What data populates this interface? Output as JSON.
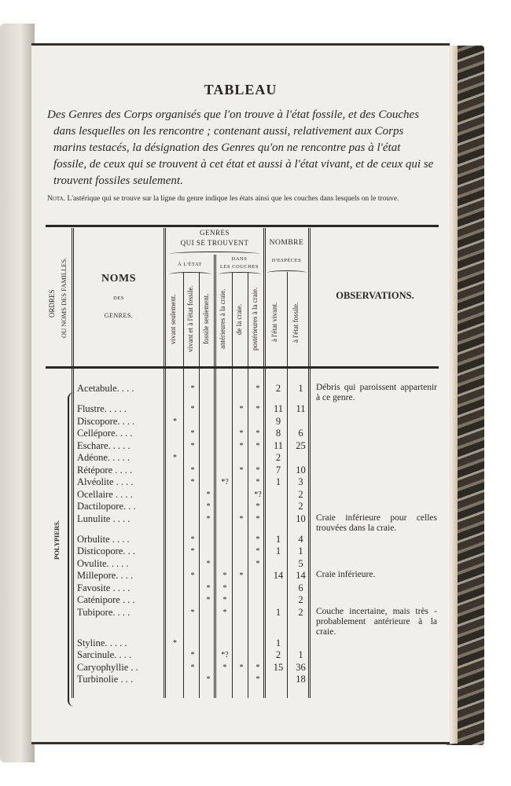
{
  "title": "TABLEAU",
  "subtitle": "Des Genres des Corps organisés que l'on trouve à l'état fossile, et des Couches dans lesquelles on les rencontre ; contenant aussi, relativement aux Corps marins testacés, la désignation des Genres qu'on ne rencontre pas à l'état fossile, de ceux qui se trouvent à cet état et aussi à l'état vivant, et de ceux qui se trouvent fossiles seulement.",
  "nota": {
    "label": "Nota.",
    "text": "L'astérique qui se trouve sur la ligne du genre indique les états ainsi que les couches dans lesquels on le trouve."
  },
  "header": {
    "ordres": "ORDRES",
    "ordres2": "OU NOMS DES FAMILLES.",
    "noms": "NOMS",
    "des": "DES",
    "genres": "GENRES.",
    "genres_title": "GENRES",
    "qui_se_trouvent": "QUI SE TROUVENT",
    "a_l_etat": "À L'ÉTAT",
    "dans": "DANS",
    "les_couches": "LES COUCHES",
    "nombre": "NOMBRE",
    "d_especes": "D'ESPÈCES",
    "cols": [
      "vivant seulement.",
      "vivant et à l'état fossile.",
      "fossile seulement.",
      "antérieures à la craie.",
      "de la craie.",
      "postérieures à la craie.",
      "à l'état vivant.",
      "à l'état fossile."
    ],
    "observations": "OBSERVATIONS."
  },
  "order_name": "POLYPIERS.",
  "rows": [
    {
      "name": "Acetabule. . . .",
      "marks": [
        "",
        "*",
        "",
        "",
        "",
        "*"
      ],
      "n1": "2",
      "n2": "1",
      "obs": "Débris qui paroissent appartenir à ce genre."
    },
    {
      "name": "Flustre. . . . .",
      "marks": [
        "",
        "*",
        "",
        "",
        "*",
        "*"
      ],
      "n1": "11",
      "n2": "11",
      "obs": ""
    },
    {
      "name": "Discopore. . . .",
      "marks": [
        "*",
        "",
        "",
        "",
        "",
        ""
      ],
      "n1": "9",
      "n2": "",
      "obs": ""
    },
    {
      "name": "Cellépore. . . .",
      "marks": [
        "",
        "*",
        "",
        "",
        "*",
        "*"
      ],
      "n1": "8",
      "n2": "6",
      "obs": ""
    },
    {
      "name": "Eschare. . . . .",
      "marks": [
        "",
        "*",
        "",
        "",
        "*",
        "*"
      ],
      "n1": "11",
      "n2": "25",
      "obs": ""
    },
    {
      "name": "Adéone. . . . .",
      "marks": [
        "*",
        "",
        "",
        "",
        "",
        ""
      ],
      "n1": "2",
      "n2": "",
      "obs": ""
    },
    {
      "name": "Rétépore . . . .",
      "marks": [
        "",
        "*",
        "",
        "",
        "*",
        "*"
      ],
      "n1": "7",
      "n2": "10",
      "obs": ""
    },
    {
      "name": "Alvéolite . . . .",
      "marks": [
        "",
        "*",
        "",
        "*?",
        "",
        "*"
      ],
      "n1": "1",
      "n2": "3",
      "obs": ""
    },
    {
      "name": "Ocellaire . . . .",
      "marks": [
        "",
        "",
        "*",
        "",
        "",
        "*?"
      ],
      "n1": "",
      "n2": "2",
      "obs": ""
    },
    {
      "name": "Dactilopore. . .",
      "marks": [
        "",
        "",
        "*",
        "",
        "",
        "*"
      ],
      "n1": "",
      "n2": "2",
      "obs": ""
    },
    {
      "name": "Lunulite . . . .",
      "marks": [
        "",
        "",
        "*",
        "",
        "*",
        "*"
      ],
      "n1": "",
      "n2": "10",
      "obs": "Craie inférieure pour celles trouvées dans la craie."
    },
    {
      "name": "Orbulite . . . .",
      "marks": [
        "",
        "*",
        "",
        "",
        "",
        "*"
      ],
      "n1": "1",
      "n2": "4",
      "obs": ""
    },
    {
      "name": "Disticopore. . .",
      "marks": [
        "",
        "*",
        "",
        "",
        "",
        "*"
      ],
      "n1": "1",
      "n2": "1",
      "obs": ""
    },
    {
      "name": "Ovulite. . . . .",
      "marks": [
        "",
        "",
        "*",
        "",
        "",
        "*"
      ],
      "n1": "",
      "n2": "5",
      "obs": ""
    },
    {
      "name": "Millepore. . . .",
      "marks": [
        "",
        "*",
        "",
        "*",
        "*",
        ""
      ],
      "n1": "14",
      "n2": "14",
      "obs": "Craie inférieure."
    },
    {
      "name": "Favosite . . . .",
      "marks": [
        "",
        "",
        "*",
        "*",
        "",
        ""
      ],
      "n1": "",
      "n2": "6",
      "obs": ""
    },
    {
      "name": "Caténipore . . .",
      "marks": [
        "",
        "",
        "*",
        "*",
        "",
        ""
      ],
      "n1": "",
      "n2": "2",
      "obs": ""
    },
    {
      "name": "Tubipore. . . .",
      "marks": [
        "",
        "*",
        "",
        "*",
        "",
        ""
      ],
      "n1": "1",
      "n2": "2",
      "obs": "Couche incertaine, mais très - probablement antérieure à la craie."
    },
    {
      "name": "Styline. . . . .",
      "marks": [
        "*",
        "",
        "",
        "",
        "",
        ""
      ],
      "n1": "1",
      "n2": "",
      "obs": ""
    },
    {
      "name": "Sarcinule. . . .",
      "marks": [
        "",
        "*",
        "",
        "*?",
        "",
        ""
      ],
      "n1": "2",
      "n2": "1",
      "obs": ""
    },
    {
      "name": "Caryophyllie . .",
      "marks": [
        "",
        "*",
        "",
        "*",
        "*",
        "*"
      ],
      "n1": "15",
      "n2": "36",
      "obs": ""
    },
    {
      "name": "Turbinolie . . .",
      "marks": [
        "",
        "",
        "*",
        "",
        "",
        "*"
      ],
      "n1": "",
      "n2": "18",
      "obs": ""
    }
  ]
}
